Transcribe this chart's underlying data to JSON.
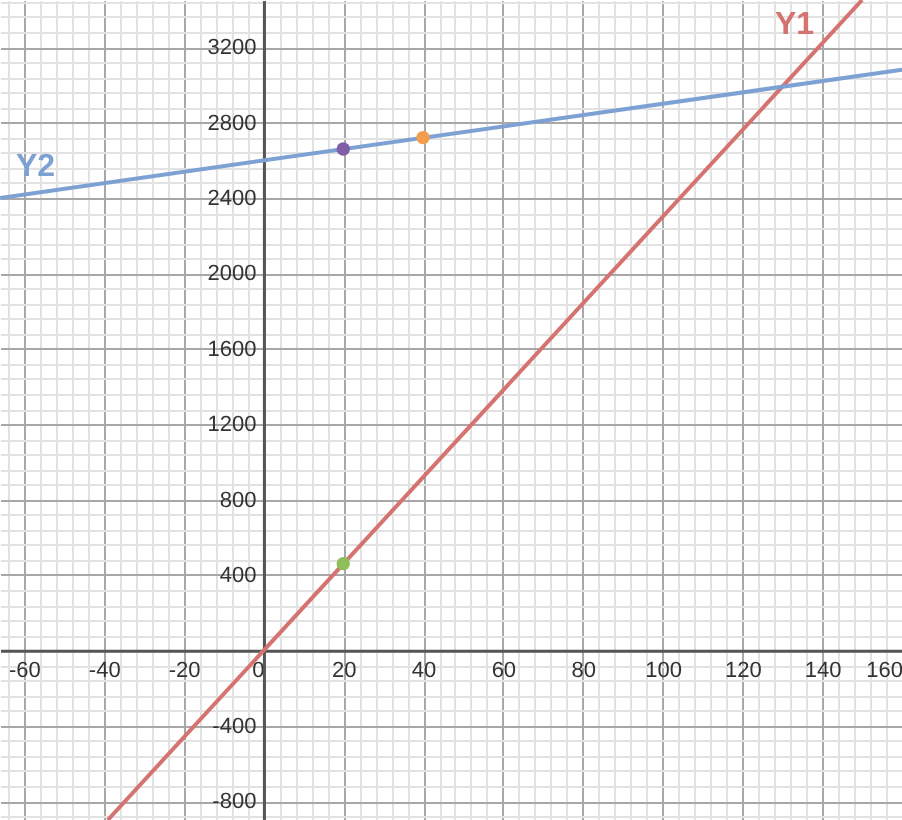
{
  "chart_data": {
    "type": "line",
    "xlim": [
      -66,
      160
    ],
    "ylim": [
      -900,
      3450
    ],
    "xticks": [
      {
        "value": -64,
        "label": null
      },
      -60,
      {
        "value": -56,
        "label": null
      },
      {
        "value": -52,
        "label": null
      },
      {
        "value": -48,
        "label": null
      },
      {
        "value": -44,
        "label": null
      },
      -40,
      {
        "value": -36,
        "label": null
      },
      {
        "value": -32,
        "label": null
      },
      {
        "value": -28,
        "label": null
      },
      {
        "value": -24,
        "label": null
      },
      -20,
      {
        "value": -16,
        "label": null
      },
      {
        "value": -12,
        "label": null
      },
      {
        "value": -8,
        "label": null
      },
      {
        "value": -4,
        "label": null
      },
      0,
      {
        "value": 4,
        "label": null
      },
      {
        "value": 8,
        "label": null
      },
      {
        "value": 12,
        "label": null
      },
      {
        "value": 16,
        "label": null
      },
      20,
      {
        "value": 24,
        "label": null
      },
      {
        "value": 28,
        "label": null
      },
      {
        "value": 32,
        "label": null
      },
      {
        "value": 36,
        "label": null
      },
      40,
      {
        "value": 44,
        "label": null
      },
      {
        "value": 48,
        "label": null
      },
      {
        "value": 52,
        "label": null
      },
      {
        "value": 56,
        "label": null
      },
      60,
      {
        "value": 64,
        "label": null
      },
      {
        "value": 68,
        "label": null
      },
      {
        "value": 72,
        "label": null
      },
      {
        "value": 76,
        "label": null
      },
      80,
      {
        "value": 84,
        "label": null
      },
      {
        "value": 88,
        "label": null
      },
      {
        "value": 92,
        "label": null
      },
      {
        "value": 96,
        "label": null
      },
      100,
      {
        "value": 104,
        "label": null
      },
      {
        "value": 108,
        "label": null
      },
      {
        "value": 112,
        "label": null
      },
      {
        "value": 116,
        "label": null
      },
      120,
      {
        "value": 124,
        "label": null
      },
      {
        "value": 128,
        "label": null
      },
      {
        "value": 132,
        "label": null
      },
      {
        "value": 136,
        "label": null
      },
      140,
      {
        "value": 144,
        "label": null
      },
      {
        "value": 148,
        "label": null
      },
      {
        "value": 152,
        "label": null
      },
      {
        "value": 156,
        "label": null
      },
      160
    ],
    "yticks": [
      {
        "value": -880,
        "label": null
      },
      -800,
      {
        "value": -720,
        "label": null
      },
      {
        "value": -640,
        "label": null
      },
      {
        "value": -560,
        "label": null
      },
      {
        "value": -480,
        "label": null
      },
      -400,
      {
        "value": -320,
        "label": null
      },
      {
        "value": -240,
        "label": null
      },
      {
        "value": -160,
        "label": null
      },
      {
        "value": -80,
        "label": null
      },
      {
        "value": 0,
        "label": null
      },
      {
        "value": 80,
        "label": null
      },
      {
        "value": 160,
        "label": null
      },
      {
        "value": 240,
        "label": null
      },
      {
        "value": 320,
        "label": null
      },
      400,
      {
        "value": 480,
        "label": null
      },
      {
        "value": 560,
        "label": null
      },
      {
        "value": 640,
        "label": null
      },
      {
        "value": 720,
        "label": null
      },
      800,
      {
        "value": 880,
        "label": null
      },
      {
        "value": 960,
        "label": null
      },
      {
        "value": 1040,
        "label": null
      },
      {
        "value": 1120,
        "label": null
      },
      1200,
      {
        "value": 1280,
        "label": null
      },
      {
        "value": 1360,
        "label": null
      },
      {
        "value": 1440,
        "label": null
      },
      {
        "value": 1520,
        "label": null
      },
      1600,
      {
        "value": 1680,
        "label": null
      },
      {
        "value": 1760,
        "label": null
      },
      {
        "value": 1840,
        "label": null
      },
      {
        "value": 1920,
        "label": null
      },
      2000,
      {
        "value": 2080,
        "label": null
      },
      {
        "value": 2160,
        "label": null
      },
      {
        "value": 2240,
        "label": null
      },
      {
        "value": 2320,
        "label": null
      },
      2400,
      {
        "value": 2480,
        "label": null
      },
      {
        "value": 2560,
        "label": null
      },
      {
        "value": 2640,
        "label": null
      },
      {
        "value": 2720,
        "label": null
      },
      2800,
      {
        "value": 2880,
        "label": null
      },
      {
        "value": 2960,
        "label": null
      },
      {
        "value": 3040,
        "label": null
      },
      {
        "value": 3120,
        "label": null
      },
      3200,
      {
        "value": 3280,
        "label": null
      },
      {
        "value": 3360,
        "label": null
      },
      {
        "value": 3440,
        "label": null
      }
    ],
    "grid": true,
    "series": [
      {
        "name": "Y1",
        "color": "#d4736f",
        "x": [
          -39,
          150
        ],
        "values": [
          -900,
          3450
        ]
      },
      {
        "name": "Y2",
        "color": "#7ea1d3",
        "x": [
          -66,
          160
        ],
        "values": [
          2400,
          3080
        ]
      },
      {
        "type": "scatter",
        "marker": "circle",
        "x": [
          20,
          40,
          20
        ],
        "values": [
          2660,
          2720,
          460
        ],
        "colors": [
          "#7e5ea8",
          "#f59d4f",
          "#8fbf5a"
        ]
      }
    ]
  }
}
